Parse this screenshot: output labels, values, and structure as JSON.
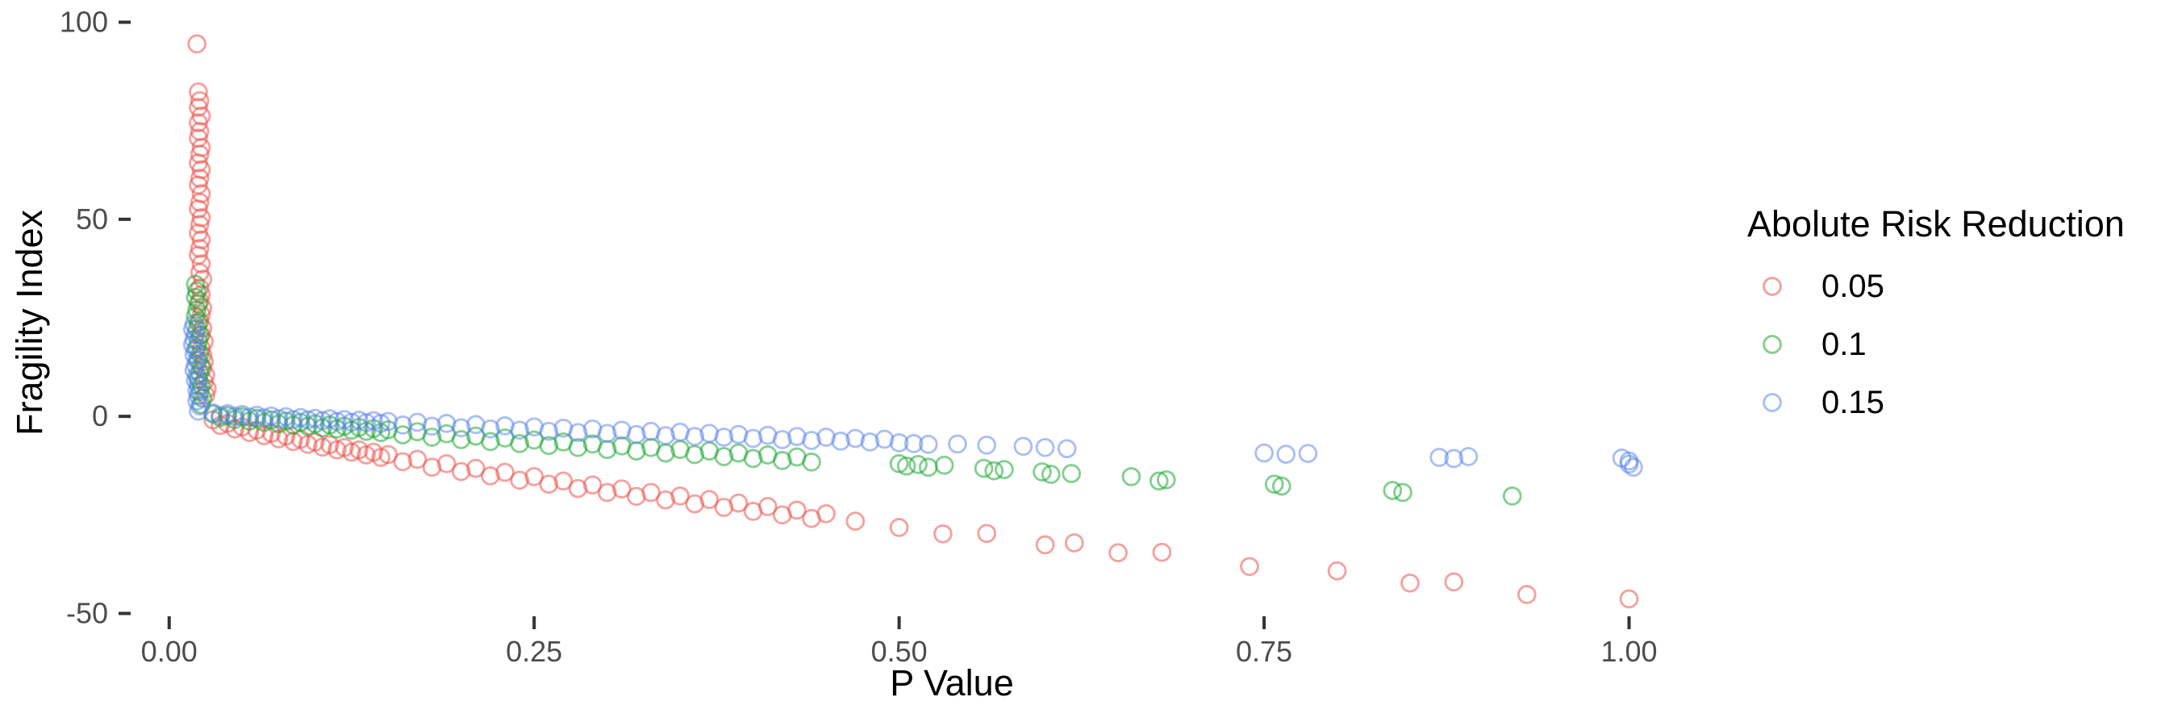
{
  "figure": {
    "background": "#FFFFFF"
  },
  "chart_data": {
    "type": "scatter",
    "title": "",
    "xlabel": "P Value",
    "ylabel": "Fragility Index",
    "xlim": [
      -0.033,
      1.05
    ],
    "ylim": [
      -54,
      104
    ],
    "grid": false,
    "marker": {
      "shape": "open-circle",
      "radius": 10.4,
      "alpha": 0.5
    },
    "x_ticks": {
      "values": [
        0,
        0.25,
        0.5,
        0.75,
        1.0
      ],
      "labels": [
        "0.00",
        "0.25",
        "0.50",
        "0.75",
        "1.00"
      ]
    },
    "y_ticks": {
      "values": [
        100,
        50,
        0,
        -50
      ],
      "labels": [
        "100",
        "50",
        "0",
        "-50"
      ]
    },
    "legend": {
      "title": "Abolute Risk Reduction",
      "position": "right",
      "entries": [
        {
          "label": "0.05",
          "color": "#EB554E"
        },
        {
          "label": "0.1",
          "color": "#1FA835"
        },
        {
          "label": "0.15",
          "color": "#5380EC"
        }
      ]
    },
    "series": [
      {
        "name": "0.05",
        "color": "#EB554E",
        "stroke": "rgba(235,85,78,0.55)",
        "points": [
          [
            0.019,
            94.5
          ],
          [
            0.02,
            82.3
          ],
          [
            0.021,
            80.1
          ],
          [
            0.02,
            78.4
          ],
          [
            0.022,
            76.2
          ],
          [
            0.02,
            74.5
          ],
          [
            0.021,
            72.3
          ],
          [
            0.02,
            70.6
          ],
          [
            0.022,
            68.2
          ],
          [
            0.021,
            66.5
          ],
          [
            0.02,
            64.3
          ],
          [
            0.022,
            62.6
          ],
          [
            0.021,
            60.4
          ],
          [
            0.02,
            58.7
          ],
          [
            0.022,
            56.5
          ],
          [
            0.021,
            54.3
          ],
          [
            0.02,
            52.6
          ],
          [
            0.022,
            50.4
          ],
          [
            0.021,
            48.7
          ],
          [
            0.02,
            46.5
          ],
          [
            0.022,
            44.8
          ],
          [
            0.021,
            42.6
          ],
          [
            0.02,
            40.9
          ],
          [
            0.022,
            38.7
          ],
          [
            0.021,
            36.5
          ],
          [
            0.023,
            34.8
          ],
          [
            0.021,
            32.6
          ],
          [
            0.022,
            30.9
          ],
          [
            0.021,
            29.2
          ],
          [
            0.023,
            27.5
          ],
          [
            0.022,
            25.8
          ],
          [
            0.021,
            24.1
          ],
          [
            0.023,
            22.4
          ],
          [
            0.022,
            20.7
          ],
          [
            0.024,
            19.0
          ],
          [
            0.022,
            17.3
          ],
          [
            0.023,
            15.6
          ],
          [
            0.024,
            13.9
          ],
          [
            0.023,
            12.2
          ],
          [
            0.025,
            10.5
          ],
          [
            0.024,
            8.8
          ],
          [
            0.026,
            7.1
          ],
          [
            0.025,
            5.4
          ],
          [
            0.03,
            -0.9
          ],
          [
            0.035,
            -2.3
          ],
          [
            0.04,
            -1.8
          ],
          [
            0.045,
            -3.2
          ],
          [
            0.05,
            -2.7
          ],
          [
            0.055,
            -4.1
          ],
          [
            0.06,
            -3.5
          ],
          [
            0.065,
            -4.9
          ],
          [
            0.07,
            -4.3
          ],
          [
            0.075,
            -5.7
          ],
          [
            0.08,
            -5.0
          ],
          [
            0.085,
            -6.4
          ],
          [
            0.09,
            -5.8
          ],
          [
            0.095,
            -7.1
          ],
          [
            0.1,
            -6.5
          ],
          [
            0.105,
            -7.8
          ],
          [
            0.11,
            -7.2
          ],
          [
            0.115,
            -8.5
          ],
          [
            0.12,
            -7.9
          ],
          [
            0.125,
            -9.1
          ],
          [
            0.13,
            -8.5
          ],
          [
            0.135,
            -9.8
          ],
          [
            0.14,
            -9.1
          ],
          [
            0.145,
            -10.4
          ],
          [
            0.15,
            -9.7
          ],
          [
            0.16,
            -11.5
          ],
          [
            0.17,
            -10.9
          ],
          [
            0.18,
            -12.9
          ],
          [
            0.19,
            -12.0
          ],
          [
            0.2,
            -14.0
          ],
          [
            0.21,
            -13.2
          ],
          [
            0.22,
            -15.1
          ],
          [
            0.23,
            -14.2
          ],
          [
            0.24,
            -16.2
          ],
          [
            0.25,
            -15.3
          ],
          [
            0.26,
            -17.2
          ],
          [
            0.27,
            -16.4
          ],
          [
            0.28,
            -18.3
          ],
          [
            0.29,
            -17.4
          ],
          [
            0.3,
            -19.3
          ],
          [
            0.31,
            -18.4
          ],
          [
            0.32,
            -20.3
          ],
          [
            0.33,
            -19.3
          ],
          [
            0.34,
            -21.2
          ],
          [
            0.35,
            -20.2
          ],
          [
            0.36,
            -22.2
          ],
          [
            0.37,
            -21.1
          ],
          [
            0.38,
            -23.1
          ],
          [
            0.39,
            -22.0
          ],
          [
            0.4,
            -24.1
          ],
          [
            0.41,
            -22.9
          ],
          [
            0.42,
            -25.0
          ],
          [
            0.43,
            -23.8
          ],
          [
            0.44,
            -25.9
          ],
          [
            0.45,
            -24.7
          ],
          [
            0.47,
            -26.6
          ],
          [
            0.5,
            -28.2
          ],
          [
            0.53,
            -29.8
          ],
          [
            0.56,
            -29.7
          ],
          [
            0.6,
            -32.6
          ],
          [
            0.62,
            -32.1
          ],
          [
            0.65,
            -34.6
          ],
          [
            0.68,
            -34.5
          ],
          [
            0.74,
            -38.1
          ],
          [
            0.8,
            -39.2
          ],
          [
            0.85,
            -42.3
          ],
          [
            0.88,
            -42.0
          ],
          [
            0.93,
            -45.2
          ],
          [
            1.0,
            -46.3
          ]
        ]
      },
      {
        "name": "0.1",
        "color": "#1FA835",
        "stroke": "rgba(31,168,53,0.55)",
        "points": [
          [
            0.018,
            33.5
          ],
          [
            0.019,
            31.8
          ],
          [
            0.018,
            30.2
          ],
          [
            0.02,
            28.6
          ],
          [
            0.019,
            27.0
          ],
          [
            0.018,
            25.4
          ],
          [
            0.02,
            23.8
          ],
          [
            0.019,
            22.2
          ],
          [
            0.021,
            20.6
          ],
          [
            0.02,
            19.0
          ],
          [
            0.019,
            17.4
          ],
          [
            0.021,
            15.8
          ],
          [
            0.02,
            14.2
          ],
          [
            0.022,
            12.6
          ],
          [
            0.021,
            11.0
          ],
          [
            0.02,
            9.4
          ],
          [
            0.022,
            7.8
          ],
          [
            0.021,
            6.2
          ],
          [
            0.023,
            4.6
          ],
          [
            0.022,
            3.0
          ],
          [
            0.03,
            0.6
          ],
          [
            0.035,
            -0.3
          ],
          [
            0.04,
            0.2
          ],
          [
            0.045,
            -0.8
          ],
          [
            0.05,
            -0.1
          ],
          [
            0.055,
            -1.2
          ],
          [
            0.06,
            -0.5
          ],
          [
            0.065,
            -1.5
          ],
          [
            0.07,
            -0.9
          ],
          [
            0.075,
            -1.9
          ],
          [
            0.08,
            -1.2
          ],
          [
            0.085,
            -2.2
          ],
          [
            0.09,
            -1.5
          ],
          [
            0.095,
            -2.5
          ],
          [
            0.1,
            -1.9
          ],
          [
            0.105,
            -2.9
          ],
          [
            0.11,
            -2.2
          ],
          [
            0.115,
            -3.2
          ],
          [
            0.12,
            -2.5
          ],
          [
            0.125,
            -3.5
          ],
          [
            0.13,
            -2.8
          ],
          [
            0.135,
            -3.8
          ],
          [
            0.14,
            -3.1
          ],
          [
            0.145,
            -4.1
          ],
          [
            0.15,
            -3.4
          ],
          [
            0.16,
            -4.7
          ],
          [
            0.17,
            -3.9
          ],
          [
            0.18,
            -5.3
          ],
          [
            0.19,
            -4.4
          ],
          [
            0.2,
            -5.9
          ],
          [
            0.21,
            -5.0
          ],
          [
            0.22,
            -6.4
          ],
          [
            0.23,
            -5.5
          ],
          [
            0.24,
            -6.9
          ],
          [
            0.25,
            -6.0
          ],
          [
            0.26,
            -7.4
          ],
          [
            0.27,
            -6.5
          ],
          [
            0.28,
            -7.9
          ],
          [
            0.29,
            -7.0
          ],
          [
            0.3,
            -8.4
          ],
          [
            0.31,
            -7.5
          ],
          [
            0.32,
            -8.8
          ],
          [
            0.33,
            -7.9
          ],
          [
            0.34,
            -9.3
          ],
          [
            0.35,
            -8.4
          ],
          [
            0.36,
            -9.7
          ],
          [
            0.37,
            -8.8
          ],
          [
            0.38,
            -10.2
          ],
          [
            0.39,
            -9.3
          ],
          [
            0.4,
            -10.7
          ],
          [
            0.41,
            -9.8
          ],
          [
            0.42,
            -11.2
          ],
          [
            0.43,
            -10.3
          ],
          [
            0.44,
            -11.6
          ],
          [
            0.5,
            -12.0
          ],
          [
            0.505,
            -12.6
          ],
          [
            0.513,
            -12.2
          ],
          [
            0.52,
            -12.9
          ],
          [
            0.531,
            -12.4
          ],
          [
            0.558,
            -13.2
          ],
          [
            0.565,
            -13.8
          ],
          [
            0.572,
            -13.5
          ],
          [
            0.598,
            -14.1
          ],
          [
            0.604,
            -14.7
          ],
          [
            0.618,
            -14.5
          ],
          [
            0.659,
            -15.3
          ],
          [
            0.678,
            -16.4
          ],
          [
            0.683,
            -16.1
          ],
          [
            0.757,
            -17.2
          ],
          [
            0.762,
            -17.7
          ],
          [
            0.838,
            -18.8
          ],
          [
            0.845,
            -19.3
          ],
          [
            0.92,
            -20.2
          ]
        ]
      },
      {
        "name": "0.15",
        "color": "#5380EC",
        "stroke": "rgba(83,128,236,0.5)",
        "points": [
          [
            0.017,
            23.4
          ],
          [
            0.016,
            22.1
          ],
          [
            0.018,
            20.8
          ],
          [
            0.017,
            19.5
          ],
          [
            0.016,
            18.2
          ],
          [
            0.018,
            16.9
          ],
          [
            0.017,
            15.6
          ],
          [
            0.019,
            14.3
          ],
          [
            0.018,
            13.0
          ],
          [
            0.017,
            11.7
          ],
          [
            0.019,
            10.4
          ],
          [
            0.018,
            9.1
          ],
          [
            0.02,
            7.8
          ],
          [
            0.019,
            6.5
          ],
          [
            0.02,
            5.2
          ],
          [
            0.019,
            3.9
          ],
          [
            0.021,
            2.6
          ],
          [
            0.02,
            1.3
          ],
          [
            0.03,
            0.9
          ],
          [
            0.035,
            0.2
          ],
          [
            0.04,
            0.7
          ],
          [
            0.045,
            0.0
          ],
          [
            0.05,
            0.5
          ],
          [
            0.055,
            -0.2
          ],
          [
            0.06,
            0.3
          ],
          [
            0.065,
            -0.4
          ],
          [
            0.07,
            0.1
          ],
          [
            0.075,
            -0.6
          ],
          [
            0.08,
            -0.1
          ],
          [
            0.085,
            -0.8
          ],
          [
            0.09,
            -0.3
          ],
          [
            0.095,
            -0.9
          ],
          [
            0.1,
            -0.5
          ],
          [
            0.105,
            -1.1
          ],
          [
            0.11,
            -0.6
          ],
          [
            0.115,
            -1.3
          ],
          [
            0.12,
            -0.8
          ],
          [
            0.125,
            -1.5
          ],
          [
            0.13,
            -1.0
          ],
          [
            0.135,
            -1.6
          ],
          [
            0.14,
            -1.1
          ],
          [
            0.145,
            -1.8
          ],
          [
            0.15,
            -1.3
          ],
          [
            0.16,
            -2.2
          ],
          [
            0.17,
            -1.5
          ],
          [
            0.18,
            -2.5
          ],
          [
            0.19,
            -1.8
          ],
          [
            0.2,
            -2.9
          ],
          [
            0.21,
            -2.1
          ],
          [
            0.22,
            -3.2
          ],
          [
            0.23,
            -2.4
          ],
          [
            0.24,
            -3.5
          ],
          [
            0.25,
            -2.7
          ],
          [
            0.26,
            -3.8
          ],
          [
            0.27,
            -3.0
          ],
          [
            0.28,
            -4.1
          ],
          [
            0.29,
            -3.2
          ],
          [
            0.3,
            -4.3
          ],
          [
            0.31,
            -3.5
          ],
          [
            0.32,
            -4.6
          ],
          [
            0.33,
            -3.8
          ],
          [
            0.34,
            -4.9
          ],
          [
            0.35,
            -4.0
          ],
          [
            0.36,
            -5.1
          ],
          [
            0.37,
            -4.3
          ],
          [
            0.38,
            -5.3
          ],
          [
            0.39,
            -4.6
          ],
          [
            0.4,
            -5.6
          ],
          [
            0.41,
            -4.8
          ],
          [
            0.42,
            -5.9
          ],
          [
            0.43,
            -5.1
          ],
          [
            0.44,
            -6.1
          ],
          [
            0.45,
            -5.3
          ],
          [
            0.46,
            -6.3
          ],
          [
            0.47,
            -5.6
          ],
          [
            0.48,
            -6.5
          ],
          [
            0.49,
            -5.8
          ],
          [
            0.5,
            -6.7
          ],
          [
            0.51,
            -6.9
          ],
          [
            0.52,
            -7.1
          ],
          [
            0.54,
            -7.0
          ],
          [
            0.56,
            -7.3
          ],
          [
            0.585,
            -7.6
          ],
          [
            0.6,
            -7.9
          ],
          [
            0.615,
            -8.2
          ],
          [
            0.75,
            -9.3
          ],
          [
            0.765,
            -9.6
          ],
          [
            0.78,
            -9.4
          ],
          [
            0.87,
            -10.4
          ],
          [
            0.88,
            -10.7
          ],
          [
            0.89,
            -10.2
          ],
          [
            0.995,
            -10.6
          ],
          [
            1.0,
            -11.3
          ],
          [
            1.0,
            -12.1
          ],
          [
            1.003,
            -12.9
          ]
        ]
      }
    ]
  }
}
